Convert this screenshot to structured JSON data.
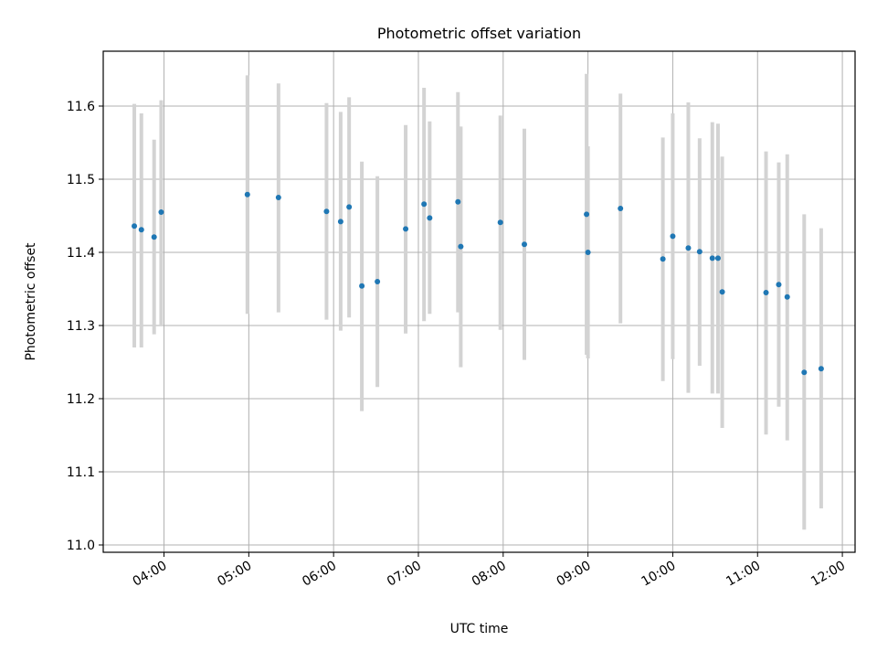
{
  "chart_data": {
    "type": "scatter",
    "title": "Photometric offset variation",
    "xlabel": "UTC time",
    "ylabel": "Photometric offset",
    "x_tick_labels": [
      "04:00",
      "05:00",
      "06:00",
      "07:00",
      "08:00",
      "09:00",
      "10:00",
      "11:00",
      "12:00"
    ],
    "y_tick_labels": [
      "11.0",
      "11.1",
      "11.2",
      "11.3",
      "11.4",
      "11.5",
      "11.6"
    ],
    "y_ticks": [
      11.0,
      11.1,
      11.2,
      11.3,
      11.4,
      11.5,
      11.6
    ],
    "xlim": [
      "03:17",
      "12:09"
    ],
    "ylim": [
      10.99,
      11.675
    ],
    "grid": true,
    "colors": {
      "points": "#1f77b4",
      "error_bars": "#d3d3d3",
      "grid": "#b0b0b0"
    },
    "points": [
      {
        "x": "03:39",
        "y": 11.436,
        "err_low": 11.27,
        "err_high": 11.603
      },
      {
        "x": "03:44",
        "y": 11.431,
        "err_low": 11.27,
        "err_high": 11.59
      },
      {
        "x": "03:53",
        "y": 11.421,
        "err_low": 11.288,
        "err_high": 11.554
      },
      {
        "x": "03:58",
        "y": 11.455,
        "err_low": 11.3,
        "err_high": 11.608
      },
      {
        "x": "04:59",
        "y": 11.479,
        "err_low": 11.316,
        "err_high": 11.642
      },
      {
        "x": "05:21",
        "y": 11.475,
        "err_low": 11.318,
        "err_high": 11.631
      },
      {
        "x": "05:55",
        "y": 11.456,
        "err_low": 11.308,
        "err_high": 11.604
      },
      {
        "x": "06:05",
        "y": 11.442,
        "err_low": 11.293,
        "err_high": 11.592
      },
      {
        "x": "06:11",
        "y": 11.462,
        "err_low": 11.311,
        "err_high": 11.612
      },
      {
        "x": "06:20",
        "y": 11.354,
        "err_low": 11.183,
        "err_high": 11.524
      },
      {
        "x": "06:31",
        "y": 11.36,
        "err_low": 11.216,
        "err_high": 11.504
      },
      {
        "x": "06:51",
        "y": 11.432,
        "err_low": 11.289,
        "err_high": 11.574
      },
      {
        "x": "07:04",
        "y": 11.466,
        "err_low": 11.306,
        "err_high": 11.625
      },
      {
        "x": "07:08",
        "y": 11.447,
        "err_low": 11.316,
        "err_high": 11.579
      },
      {
        "x": "07:28",
        "y": 11.469,
        "err_low": 11.318,
        "err_high": 11.619
      },
      {
        "x": "07:30",
        "y": 11.408,
        "err_low": 11.243,
        "err_high": 11.572
      },
      {
        "x": "07:58",
        "y": 11.441,
        "err_low": 11.294,
        "err_high": 11.587
      },
      {
        "x": "08:15",
        "y": 11.411,
        "err_low": 11.253,
        "err_high": 11.569
      },
      {
        "x": "08:59",
        "y": 11.452,
        "err_low": 11.26,
        "err_high": 11.644
      },
      {
        "x": "09:00",
        "y": 11.4,
        "err_low": 11.255,
        "err_high": 11.545
      },
      {
        "x": "09:23",
        "y": 11.46,
        "err_low": 11.303,
        "err_high": 11.617
      },
      {
        "x": "09:53",
        "y": 11.391,
        "err_low": 11.224,
        "err_high": 11.557
      },
      {
        "x": "10:00",
        "y": 11.422,
        "err_low": 11.254,
        "err_high": 11.59
      },
      {
        "x": "10:11",
        "y": 11.406,
        "err_low": 11.208,
        "err_high": 11.605
      },
      {
        "x": "10:19",
        "y": 11.401,
        "err_low": 11.245,
        "err_high": 11.556
      },
      {
        "x": "10:28",
        "y": 11.392,
        "err_low": 11.207,
        "err_high": 11.578
      },
      {
        "x": "10:32",
        "y": 11.392,
        "err_low": 11.207,
        "err_high": 11.576
      },
      {
        "x": "10:35",
        "y": 11.346,
        "err_low": 11.16,
        "err_high": 11.531
      },
      {
        "x": "11:06",
        "y": 11.345,
        "err_low": 11.151,
        "err_high": 11.538
      },
      {
        "x": "11:15",
        "y": 11.356,
        "err_low": 11.189,
        "err_high": 11.523
      },
      {
        "x": "11:21",
        "y": 11.339,
        "err_low": 11.143,
        "err_high": 11.534
      },
      {
        "x": "11:33",
        "y": 11.236,
        "err_low": 11.021,
        "err_high": 11.452
      },
      {
        "x": "11:45",
        "y": 11.241,
        "err_low": 11.05,
        "err_high": 11.433
      }
    ]
  }
}
